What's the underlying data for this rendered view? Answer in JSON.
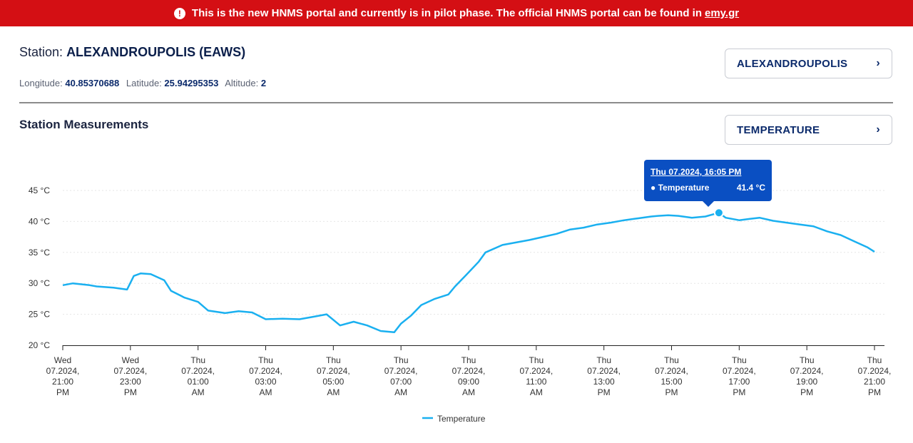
{
  "banner": {
    "message": "This is the new HNMS portal and currently is in pilot phase. The official HNMS portal can be found in",
    "link_text": "emy.gr"
  },
  "station": {
    "label": "Station:",
    "name": "ALEXANDROUPOLIS (EAWS)",
    "longitude_label": "Longitude:",
    "longitude": "40.85370688",
    "latitude_label": "Latitude:",
    "latitude": "25.94295353",
    "altitude_label": "Altitude:",
    "altitude": "2"
  },
  "section_title": "Station Measurements",
  "station_select": {
    "value": "ALEXANDROUPOLIS"
  },
  "measure_select": {
    "value": "TEMPERATURE"
  },
  "tooltip": {
    "date": "Thu 07.2024, 16:05 PM",
    "series": "Temperature",
    "value": "41.4 °C"
  },
  "colors": {
    "banner": "#d40f14",
    "line": "#1ab0f0",
    "tooltip": "#0a4fc2"
  },
  "chart_data": {
    "type": "line",
    "title": "Station Measurements",
    "ylabel": "",
    "xlabel": "",
    "ylim": [
      20,
      45
    ],
    "xlim": [
      0,
      24
    ],
    "y_ticks": [
      "20 °C",
      "25 °C",
      "30 °C",
      "35 °C",
      "40 °C",
      "45 °C"
    ],
    "y_tick_values": [
      20,
      25,
      30,
      35,
      40,
      45
    ],
    "x_ticks": [
      {
        "at": 0,
        "lines": [
          "Wed",
          "07.2024,",
          "21:00",
          "PM"
        ]
      },
      {
        "at": 2,
        "lines": [
          "Wed",
          "07.2024,",
          "23:00",
          "PM"
        ]
      },
      {
        "at": 4,
        "lines": [
          "Thu",
          "07.2024,",
          "01:00",
          "AM"
        ]
      },
      {
        "at": 6,
        "lines": [
          "Thu",
          "07.2024,",
          "03:00",
          "AM"
        ]
      },
      {
        "at": 8,
        "lines": [
          "Thu",
          "07.2024,",
          "05:00",
          "AM"
        ]
      },
      {
        "at": 10,
        "lines": [
          "Thu",
          "07.2024,",
          "07:00",
          "AM"
        ]
      },
      {
        "at": 12,
        "lines": [
          "Thu",
          "07.2024,",
          "09:00",
          "AM"
        ]
      },
      {
        "at": 14,
        "lines": [
          "Thu",
          "07.2024,",
          "11:00",
          "AM"
        ]
      },
      {
        "at": 16,
        "lines": [
          "Thu",
          "07.2024,",
          "13:00",
          "PM"
        ]
      },
      {
        "at": 18,
        "lines": [
          "Thu",
          "07.2024,",
          "15:00",
          "PM"
        ]
      },
      {
        "at": 20,
        "lines": [
          "Thu",
          "07.2024,",
          "17:00",
          "PM"
        ]
      },
      {
        "at": 22,
        "lines": [
          "Thu",
          "07.2024,",
          "19:00",
          "PM"
        ]
      },
      {
        "at": 24,
        "lines": [
          "Thu",
          "07.2024,",
          "21:00",
          "PM"
        ]
      }
    ],
    "series": [
      {
        "name": "Temperature",
        "x": [
          0,
          0.3,
          0.8,
          1.0,
          1.5,
          1.9,
          2.1,
          2.3,
          2.6,
          3.0,
          3.2,
          3.6,
          4.0,
          4.3,
          4.8,
          5.2,
          5.6,
          6.0,
          6.5,
          7.0,
          7.4,
          7.8,
          8.2,
          8.6,
          9.0,
          9.4,
          9.8,
          10.0,
          10.3,
          10.6,
          11.0,
          11.4,
          11.6,
          11.9,
          12.3,
          12.5,
          13.0,
          13.4,
          13.8,
          14.2,
          14.6,
          15.0,
          15.4,
          15.8,
          16.2,
          16.6,
          17.0,
          17.4,
          17.6,
          17.9,
          18.2,
          18.6,
          19.0,
          19.4,
          19.6,
          20.0,
          20.3,
          20.6,
          21.0,
          21.4,
          21.8,
          22.2,
          22.6,
          23.0,
          23.4,
          23.8,
          24.0
        ],
        "y": [
          29.7,
          30.0,
          29.7,
          29.5,
          29.3,
          29.0,
          31.2,
          31.6,
          31.5,
          30.5,
          28.8,
          27.7,
          27.0,
          25.6,
          25.2,
          25.5,
          25.3,
          24.2,
          24.3,
          24.2,
          24.6,
          25.0,
          23.2,
          23.8,
          23.2,
          22.3,
          22.1,
          23.5,
          24.8,
          26.5,
          27.5,
          28.2,
          29.5,
          31.2,
          33.5,
          35.0,
          36.2,
          36.6,
          37.0,
          37.5,
          38.0,
          38.7,
          39.0,
          39.5,
          39.8,
          40.2,
          40.5,
          40.8,
          40.9,
          41.0,
          40.9,
          40.6,
          40.8,
          41.4,
          40.6,
          40.2,
          40.4,
          40.6,
          40.1,
          39.8,
          39.5,
          39.2,
          38.4,
          37.8,
          36.8,
          35.8,
          35.1
        ]
      }
    ],
    "highlight": {
      "x": 19.4,
      "y": 41.4
    },
    "legend": {
      "position": "bottom-center",
      "entries": [
        "Temperature"
      ]
    },
    "grid": true
  }
}
